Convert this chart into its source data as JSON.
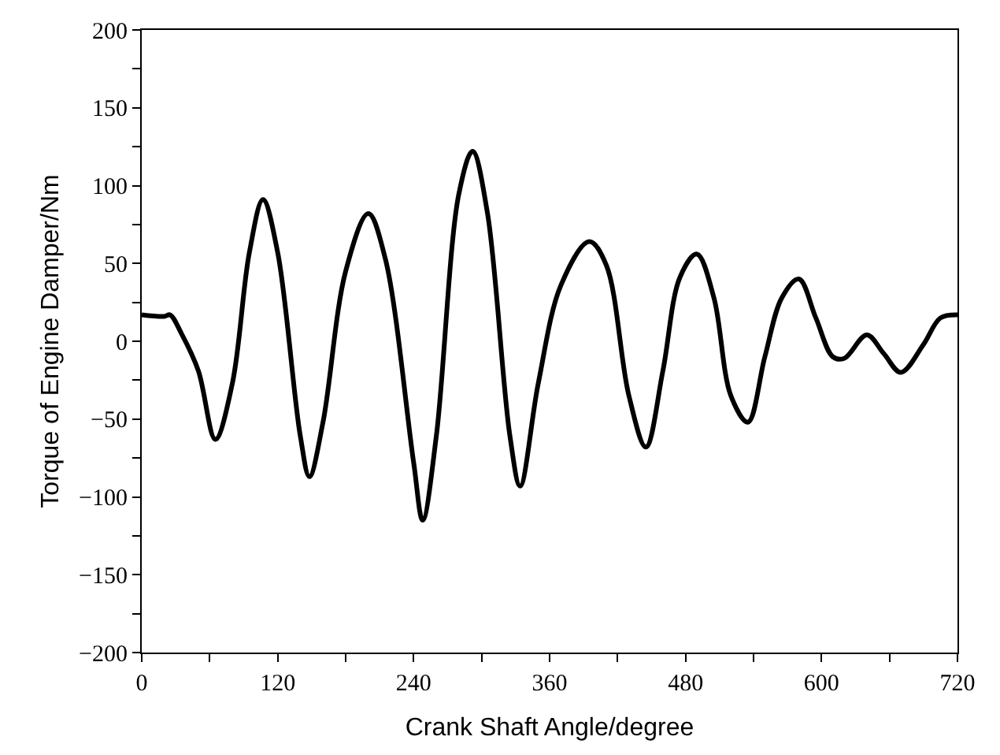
{
  "chart_data": {
    "type": "line",
    "xlabel": "Crank Shaft Angle/degree",
    "ylabel": "Torque of Engine Damper/Nm",
    "x": [
      0,
      20,
      25,
      35,
      50,
      65,
      80,
      95,
      107,
      120,
      140,
      148,
      160,
      180,
      200,
      215,
      240,
      248,
      260,
      280,
      292,
      305,
      325,
      334,
      350,
      370,
      395,
      410,
      430,
      445,
      460,
      475,
      490,
      505,
      520,
      535,
      550,
      565,
      580,
      595,
      610,
      620,
      640,
      655,
      670,
      690,
      705,
      720
    ],
    "series": [
      {
        "color": "#000000",
        "values": [
          17,
          16,
          17,
          5,
          -19,
          -63,
          -27,
          57,
          91,
          57,
          -61,
          -87,
          -52,
          45,
          82,
          53,
          -78,
          -115,
          -61,
          95,
          122,
          83,
          -61,
          -93,
          -27,
          36,
          64,
          49,
          -35,
          -68,
          -19,
          41,
          56,
          28,
          -35,
          -52,
          -10,
          28,
          40,
          15,
          -10,
          -11,
          4,
          -8,
          -20,
          -2,
          15,
          17
        ]
      }
    ],
    "xlim": [
      0,
      720
    ],
    "ylim": [
      -200,
      200
    ],
    "xticks": [
      0,
      {
        "value": 60,
        "label": null
      },
      120,
      {
        "value": 180,
        "label": null
      },
      240,
      {
        "value": 300,
        "label": null
      },
      360,
      {
        "value": 420,
        "label": null
      },
      480,
      {
        "value": 540,
        "label": null
      },
      600,
      {
        "value": 660,
        "label": null
      },
      720
    ],
    "yticks": [
      -200,
      {
        "value": -175,
        "label": null
      },
      -150,
      {
        "value": -125,
        "label": null
      },
      -100,
      {
        "value": -75,
        "label": null
      },
      -50,
      {
        "value": -25,
        "label": null
      },
      0,
      {
        "value": 25,
        "label": null
      },
      50,
      {
        "value": 75,
        "label": null
      },
      100,
      {
        "value": 125,
        "label": null
      },
      150,
      {
        "value": 175,
        "label": null
      },
      200
    ],
    "grid": false,
    "marker": "none",
    "line_style": "solid"
  }
}
